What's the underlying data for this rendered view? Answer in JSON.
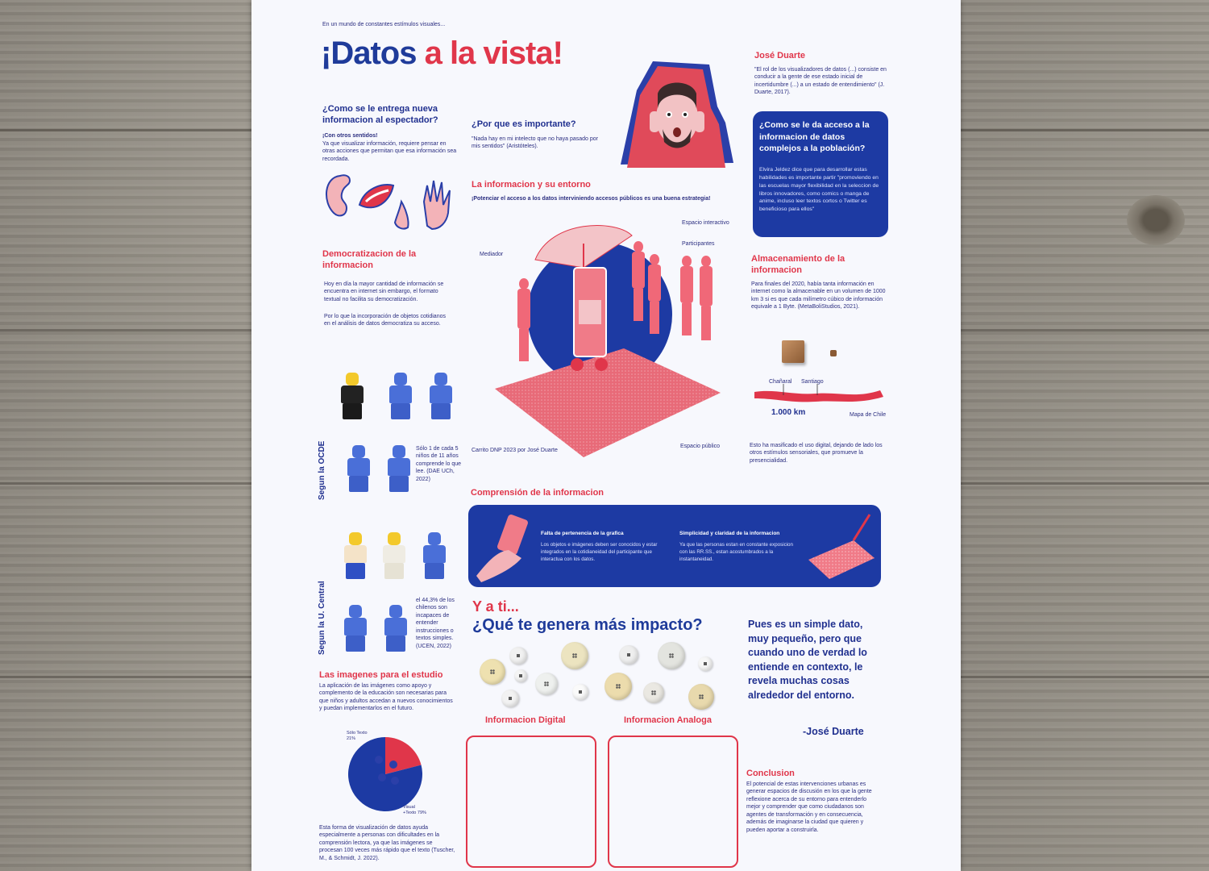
{
  "poster": {
    "tagline": "En un mundo de constantes estímulos visuales...",
    "title_part1": "¡Datos",
    "title_part2": "a la vista!",
    "q1": {
      "heading": "¿Como se le entrega nueva informacion al espectador?",
      "sub": "¡Con otros sentidos!",
      "body": "Ya que visualizar información, requiere pensar en otras acciones que permitan que esa información sea recordada."
    },
    "q2": {
      "heading": "¿Por que es importante?",
      "quote": "\"Nada hay en mi intelecto que no haya pasado por mis sentidos\" (Aristóteles)."
    },
    "author": {
      "name": "José Duarte",
      "quote": "\"El rol de los visualizadores de datos (...) consiste en conducir a la gente de ese estado inicial de incertidumbre (...) a un estado de entendimiento\" (J. Duarte, 2017)."
    },
    "access_box": {
      "heading": "¿Como se le da acceso a la informacion de datos complejos a la población?",
      "body": "Elvira Jeldez dice que para desarrollar estas habilidades es importante partir \"promoviendo en las escuelas mayor flexibilidad en la seleccion de libros innovadores, como comics o manga de anime, incluso leer textos cortos o Twitter es beneficioso para ellos\""
    },
    "entorno": {
      "heading": "La informacion y su entorno",
      "sub": "¡Potenciar el acceso a los datos interviniendo accesos públicos es una buena estrategia!",
      "labels": {
        "interactivo": "Espacio interactivo",
        "participantes": "Participantes",
        "mediador": "Mediador",
        "publico": "Espacio público"
      },
      "credit": "Carrito DNP 2023 por José Duarte"
    },
    "democratizacion": {
      "heading": "Democratizacion de la informacion",
      "p1": "Hoy en día la mayor cantidad de información se encuentra en internet sin embargo, el formato textual no facilita su democratización.",
      "p2": "Por lo que la incorporación de objetos cotidianos en el análisis de datos democratiza su acceso."
    },
    "almacenamiento": {
      "heading": "Almacenamiento de la informacion",
      "body": "Para finales del 2020, había tanta información en internet como la almacenable en un volumen de 1000 km 3 si es que cada milímetro cúbico de información equivale a 1 Byte. (MetaBoliStudios, 2021).",
      "map_labels": [
        "Chañaral",
        "Santiago"
      ],
      "distance": "1.000 km",
      "map_caption": "Mapa de Chile",
      "footer": "Esto ha masificado el uso digital, dejando de lado los otros estímulos sensoriales, que promueve la presencialidad."
    },
    "ocde": {
      "side": "Segun la OCDE",
      "text": "Sólo 1 de cada 5 niños de 11 años comprende lo que lee. (DAE UCh, 2022)"
    },
    "central": {
      "side": "Segun la U. Central",
      "text": "el 44,3% de los chilenos son incapaces de entender instrucciones o textos simples. (UCEN, 2022)"
    },
    "comprension": {
      "heading": "Comprensión de la informacion",
      "left_title": "Falta de pertenencia de la grafica",
      "left_body": "Los objetos e imágenes deben ser conocidos y estar integrados en la cotidianeidad del participante que interactua con los datos.",
      "right_title": "Simplicidad y claridad de la informacion",
      "right_body": "Ya que las personas estan en constante exposicion con las RR.SS., estan acostumbrados a la instantaneidad."
    },
    "ytiq": {
      "line1": "Y a ti...",
      "line2": "¿Qué te genera más impacto?",
      "label_digital": "Informacion Digital",
      "label_analoga": "Informacion Analoga"
    },
    "quote_right": {
      "text": "Pues es un simple dato, muy pequeño, pero que cuando uno de verdad lo entiende en contexto, le revela muchas cosas alrededor del entorno.",
      "author": "-José Duarte"
    },
    "imagenes": {
      "heading": "Las imagenes para el estudio",
      "body": "La aplicación de las imágenes como apoyo y complemento de la educación son necesarias para que niños y adultos accedan a nuevos conocimientos y puedan implementarlos en el futuro.",
      "pie_label_a": "Sólo Texto 21%",
      "pie_label_b": "Visual +Texto 79%",
      "footer": "Esta forma de visualización de datos ayuda especialmente a personas con dificultades en la comprensión lectora, ya que las imágenes se procesan 100 veces más rápido que el texto (Tuscher, M., & Schmidt, J. 2022)."
    },
    "conclusion": {
      "heading": "Conclusion",
      "body": "El potencial de estas intervenciones urbanas es generar espacios de discusión en los que la gente reflexione acerca de su entorno para entenderlo mejor y comprender que como ciudadanos son agentes de transformación y en consecuencia, además de imaginarse la ciudad que quieren y pueden aportar a construirla."
    }
  },
  "colors": {
    "red": "#e0364a",
    "blue": "#1d3aa3",
    "navy": "#20308f",
    "paper": "#f7f8fd"
  },
  "chart_data": {
    "type": "pie",
    "labels": [
      "Sólo Texto",
      "Visual +Texto"
    ],
    "values": [
      21,
      79
    ]
  }
}
